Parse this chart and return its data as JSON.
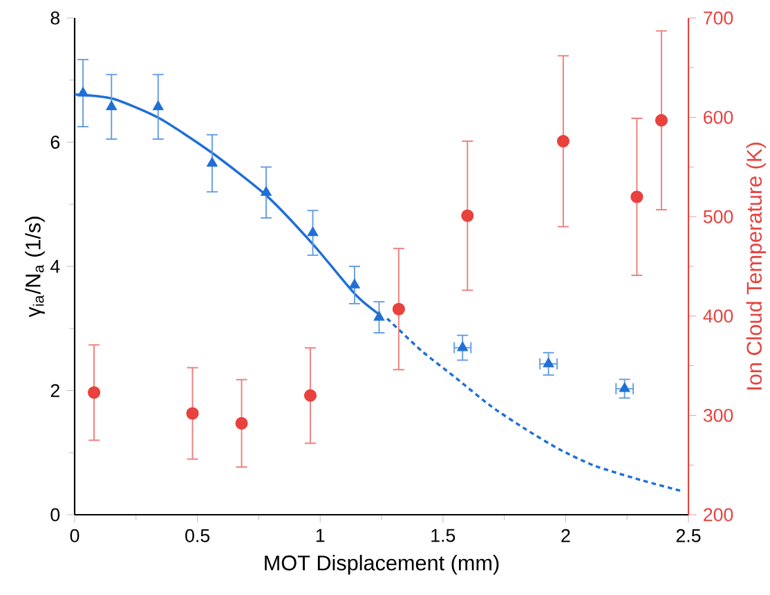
{
  "chart_data": {
    "type": "scatter",
    "xlabel": "MOT Displacement (mm)",
    "ylabel": "γ$_{ia}$/N$_{a}$ (1/s)",
    "y2label": "Ion Cloud Temperature (K)",
    "xlim": [
      0,
      2.5
    ],
    "xticks": [
      0,
      0.5,
      1,
      1.5,
      2,
      2.5
    ],
    "ylim": [
      0,
      8
    ],
    "yticks": [
      0,
      2,
      4,
      6,
      8
    ],
    "y2lim": [
      200,
      700
    ],
    "y2ticks": [
      200,
      300,
      400,
      500,
      600,
      700
    ],
    "grid": false,
    "series": [
      {
        "type": "line",
        "color": "#1f6fd6",
        "line_style": "solid",
        "marker": "none",
        "x": [
          0,
          0.156,
          0.343,
          0.559,
          0.784,
          0.972,
          1.145,
          1.239
        ],
        "values": [
          6.77,
          6.7,
          6.39,
          5.83,
          5.13,
          4.35,
          3.54,
          3.23
        ]
      },
      {
        "type": "line",
        "color": "#1f6fd6",
        "line_style": "dashed",
        "marker": "none",
        "x": [
          1.273,
          1.413,
          1.554,
          1.695,
          1.836,
          1.976,
          2.117,
          2.305,
          2.474
        ],
        "values": [
          3.16,
          2.64,
          2.2,
          1.75,
          1.38,
          1.05,
          0.79,
          0.56,
          0.38
        ]
      },
      {
        "color": "#1f6fd6",
        "marker": "triangle",
        "x": [
          0.034,
          0.15,
          0.34,
          0.56,
          0.78,
          0.97,
          1.14,
          1.24,
          1.58,
          1.93,
          2.24
        ],
        "values": [
          6.79,
          6.57,
          6.57,
          5.66,
          5.19,
          4.54,
          3.7,
          3.18,
          2.69,
          2.43,
          2.03
        ],
        "errors": [
          0.54,
          0.52,
          0.52,
          0.46,
          0.41,
          0.36,
          0.3,
          0.25,
          0.2,
          0.18,
          0.15
        ],
        "xerrors": [
          null,
          null,
          null,
          null,
          null,
          null,
          null,
          null,
          0.034,
          0.035,
          0.035
        ]
      },
      {
        "axis": "y2",
        "color": "#e8413e",
        "marker": "circle",
        "x": [
          0.079,
          0.48,
          0.68,
          0.96,
          1.32,
          1.6,
          1.99,
          2.29,
          2.39
        ],
        "values": [
          323,
          302,
          292,
          320,
          407,
          501,
          576,
          520,
          597
        ],
        "errors": [
          48,
          46,
          44,
          48,
          61,
          75,
          86,
          79,
          90
        ]
      }
    ]
  }
}
